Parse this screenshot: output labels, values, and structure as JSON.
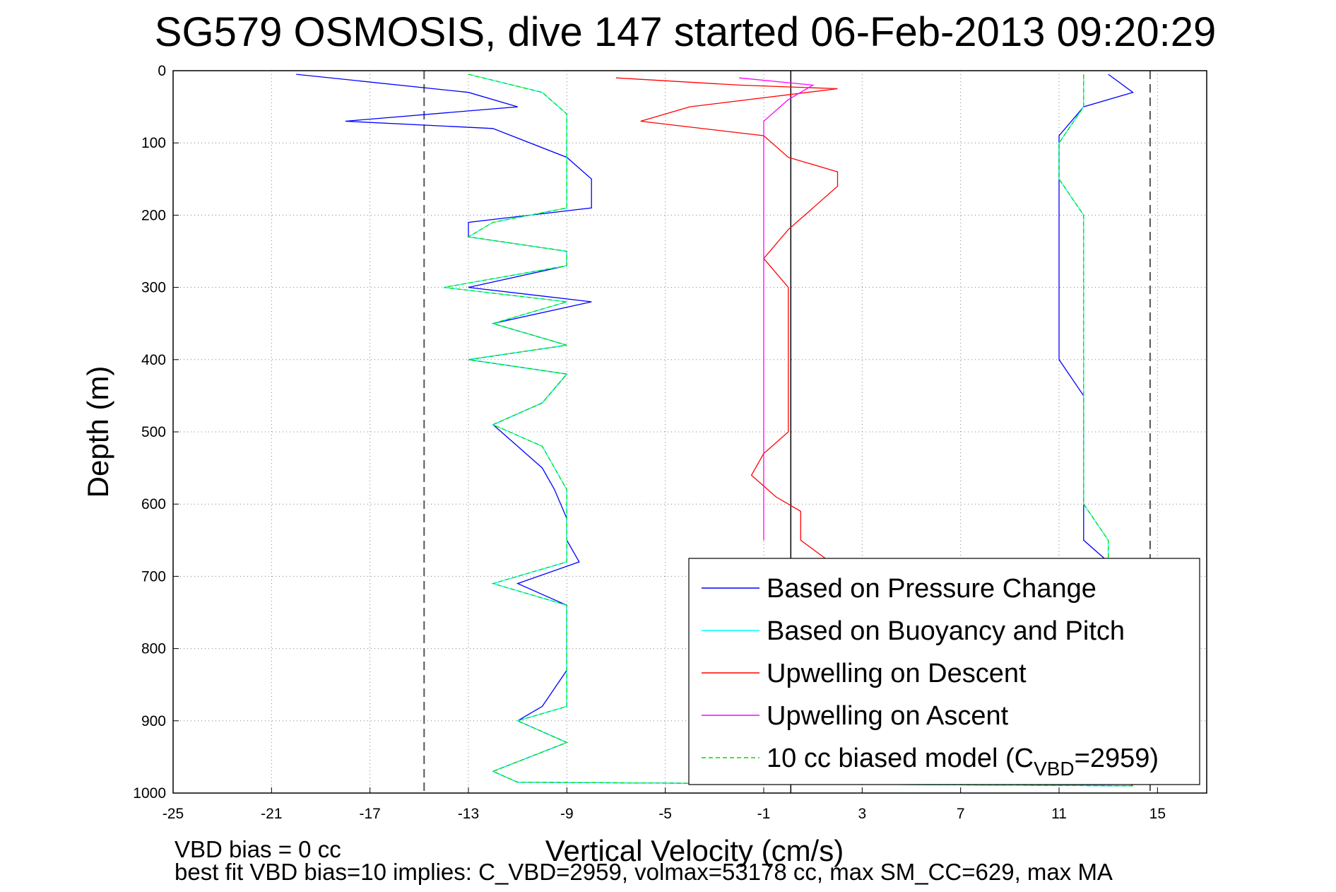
{
  "chart_data": {
    "type": "line",
    "title": "SG579 OSMOSIS, dive 147 started 06-Feb-2013 09:20:29",
    "xlabel": "Vertical Velocity (cm/s)",
    "ylabel": "Depth (m)",
    "xlim": [
      -25,
      17
    ],
    "ylim": [
      1000,
      0
    ],
    "y_reversed": true,
    "grid": true,
    "x_ticks": [
      -25,
      -21,
      -17,
      -13,
      -9,
      -5,
      -1,
      3,
      7,
      11,
      15
    ],
    "y_ticks": [
      0,
      100,
      200,
      300,
      400,
      500,
      600,
      700,
      800,
      900,
      1000
    ],
    "reference_lines": {
      "dashed_x": [
        -14.8,
        14.7
      ],
      "solid_x": [
        0.1
      ]
    },
    "legend_position": "bottom-right",
    "series": [
      {
        "name": "Based on Pressure Change",
        "color": "#0000ff",
        "descent": [
          [
            -20,
            5
          ],
          [
            -13,
            30
          ],
          [
            -11,
            50
          ],
          [
            -18,
            70
          ],
          [
            -12,
            80
          ],
          [
            -9,
            120
          ],
          [
            -8,
            150
          ],
          [
            -8,
            190
          ],
          [
            -13,
            210
          ],
          [
            -13,
            230
          ],
          [
            -9,
            250
          ],
          [
            -9,
            270
          ],
          [
            -13,
            300
          ],
          [
            -8,
            320
          ],
          [
            -12,
            350
          ],
          [
            -9,
            380
          ],
          [
            -13,
            400
          ],
          [
            -9,
            420
          ],
          [
            -10,
            460
          ],
          [
            -12,
            490
          ],
          [
            -11,
            520
          ],
          [
            -10,
            550
          ],
          [
            -9.5,
            580
          ],
          [
            -9,
            620
          ],
          [
            -9,
            650
          ],
          [
            -8.5,
            680
          ],
          [
            -11,
            710
          ],
          [
            -9,
            740
          ],
          [
            -9,
            780
          ],
          [
            -9,
            830
          ],
          [
            -10,
            880
          ],
          [
            -11,
            900
          ],
          [
            -9,
            930
          ],
          [
            -12,
            970
          ],
          [
            -11,
            985
          ],
          [
            14,
            990
          ]
        ],
        "ascent": [
          [
            13,
            5
          ],
          [
            14,
            30
          ],
          [
            12,
            50
          ],
          [
            11,
            90
          ],
          [
            11,
            150
          ],
          [
            11,
            200
          ],
          [
            11,
            250
          ],
          [
            11,
            300
          ],
          [
            11,
            350
          ],
          [
            11,
            400
          ],
          [
            12,
            450
          ],
          [
            12,
            500
          ],
          [
            12,
            550
          ],
          [
            12,
            580
          ],
          [
            12,
            620
          ],
          [
            12,
            650
          ],
          [
            13,
            680
          ]
        ]
      },
      {
        "name": "Based on Buoyancy and Pitch",
        "color": "#00ffff",
        "descent": [
          [
            -13,
            5
          ],
          [
            -10,
            30
          ],
          [
            -9,
            60
          ],
          [
            -9,
            100
          ],
          [
            -9,
            150
          ],
          [
            -9,
            190
          ],
          [
            -12,
            210
          ],
          [
            -13,
            230
          ],
          [
            -9,
            250
          ],
          [
            -9,
            270
          ],
          [
            -14,
            300
          ],
          [
            -9,
            320
          ],
          [
            -12,
            350
          ],
          [
            -9,
            380
          ],
          [
            -13,
            400
          ],
          [
            -9,
            420
          ],
          [
            -10,
            460
          ],
          [
            -12,
            490
          ],
          [
            -10,
            520
          ],
          [
            -9.5,
            550
          ],
          [
            -9,
            580
          ],
          [
            -9,
            620
          ],
          [
            -9,
            650
          ],
          [
            -9,
            680
          ],
          [
            -12,
            710
          ],
          [
            -9,
            740
          ],
          [
            -9,
            780
          ],
          [
            -9,
            830
          ],
          [
            -9,
            880
          ],
          [
            -11,
            900
          ],
          [
            -9,
            930
          ],
          [
            -12,
            970
          ],
          [
            -11,
            985
          ],
          [
            14,
            990
          ]
        ],
        "ascent": [
          [
            12,
            5
          ],
          [
            12,
            50
          ],
          [
            11,
            100
          ],
          [
            11,
            150
          ],
          [
            12,
            200
          ],
          [
            12,
            250
          ],
          [
            12,
            300
          ],
          [
            12,
            350
          ],
          [
            12,
            400
          ],
          [
            12,
            450
          ],
          [
            12,
            500
          ],
          [
            12,
            550
          ],
          [
            12,
            600
          ],
          [
            13,
            650
          ],
          [
            13,
            680
          ]
        ]
      },
      {
        "name": "Upwelling on Descent",
        "color": "#ff0000",
        "descent": [
          [
            -7,
            10
          ],
          [
            -2,
            20
          ],
          [
            2,
            25
          ],
          [
            -4,
            50
          ],
          [
            -6,
            70
          ],
          [
            -1,
            90
          ],
          [
            0,
            120
          ],
          [
            2,
            140
          ],
          [
            2,
            160
          ],
          [
            1,
            190
          ],
          [
            0,
            220
          ],
          [
            -1,
            260
          ],
          [
            0,
            300
          ],
          [
            0,
            350
          ],
          [
            0,
            400
          ],
          [
            0,
            450
          ],
          [
            0,
            500
          ],
          [
            -1,
            530
          ],
          [
            -1.5,
            560
          ],
          [
            -0.5,
            590
          ],
          [
            0.5,
            610
          ],
          [
            0.5,
            650
          ],
          [
            14,
            990
          ]
        ]
      },
      {
        "name": "Upwelling on Ascent",
        "color": "#ff00ff",
        "ascent": [
          [
            -2,
            10
          ],
          [
            1,
            20
          ],
          [
            0,
            40
          ],
          [
            -1,
            70
          ],
          [
            -1,
            100
          ],
          [
            -1,
            150
          ],
          [
            -1,
            200
          ],
          [
            -1,
            250
          ],
          [
            -1,
            300
          ],
          [
            -1,
            350
          ],
          [
            -1,
            400
          ],
          [
            -1,
            450
          ],
          [
            -1,
            500
          ],
          [
            -1,
            550
          ],
          [
            -1,
            600
          ],
          [
            -1,
            650
          ]
        ]
      },
      {
        "name": "10 cc biased model (C",
        "name_sub": "VBD",
        "name_suffix": "=2959)",
        "color": "#00dd00",
        "dash": true,
        "descent": [
          [
            -13,
            5
          ],
          [
            -10,
            30
          ],
          [
            -9,
            60
          ],
          [
            -9,
            100
          ],
          [
            -9,
            150
          ],
          [
            -9,
            190
          ],
          [
            -12,
            210
          ],
          [
            -13,
            230
          ],
          [
            -9,
            250
          ],
          [
            -9,
            270
          ],
          [
            -14,
            300
          ],
          [
            -9,
            320
          ],
          [
            -12,
            350
          ],
          [
            -9,
            380
          ],
          [
            -13,
            400
          ],
          [
            -9,
            420
          ],
          [
            -10,
            460
          ],
          [
            -12,
            490
          ],
          [
            -10,
            520
          ],
          [
            -9.5,
            550
          ],
          [
            -9,
            580
          ],
          [
            -9,
            620
          ],
          [
            -9,
            650
          ],
          [
            -9,
            680
          ],
          [
            -12,
            710
          ],
          [
            -9,
            740
          ],
          [
            -9,
            780
          ],
          [
            -9,
            830
          ],
          [
            -9,
            880
          ],
          [
            -11,
            900
          ],
          [
            -9,
            930
          ],
          [
            -12,
            970
          ],
          [
            -11,
            985
          ],
          [
            14,
            990
          ]
        ],
        "ascent": [
          [
            12,
            5
          ],
          [
            12,
            50
          ],
          [
            11,
            100
          ],
          [
            11,
            150
          ],
          [
            12,
            200
          ],
          [
            12,
            250
          ],
          [
            12,
            300
          ],
          [
            12,
            350
          ],
          [
            12,
            400
          ],
          [
            12,
            450
          ],
          [
            12,
            500
          ],
          [
            12,
            550
          ],
          [
            12,
            600
          ],
          [
            13,
            650
          ],
          [
            13,
            680
          ]
        ]
      }
    ]
  },
  "footer": {
    "line1": "VBD bias = 0 cc",
    "line2": "best fit VBD bias=10 implies: C_VBD=2959, volmax=53178 cc, max SM_CC=629, max MA"
  }
}
